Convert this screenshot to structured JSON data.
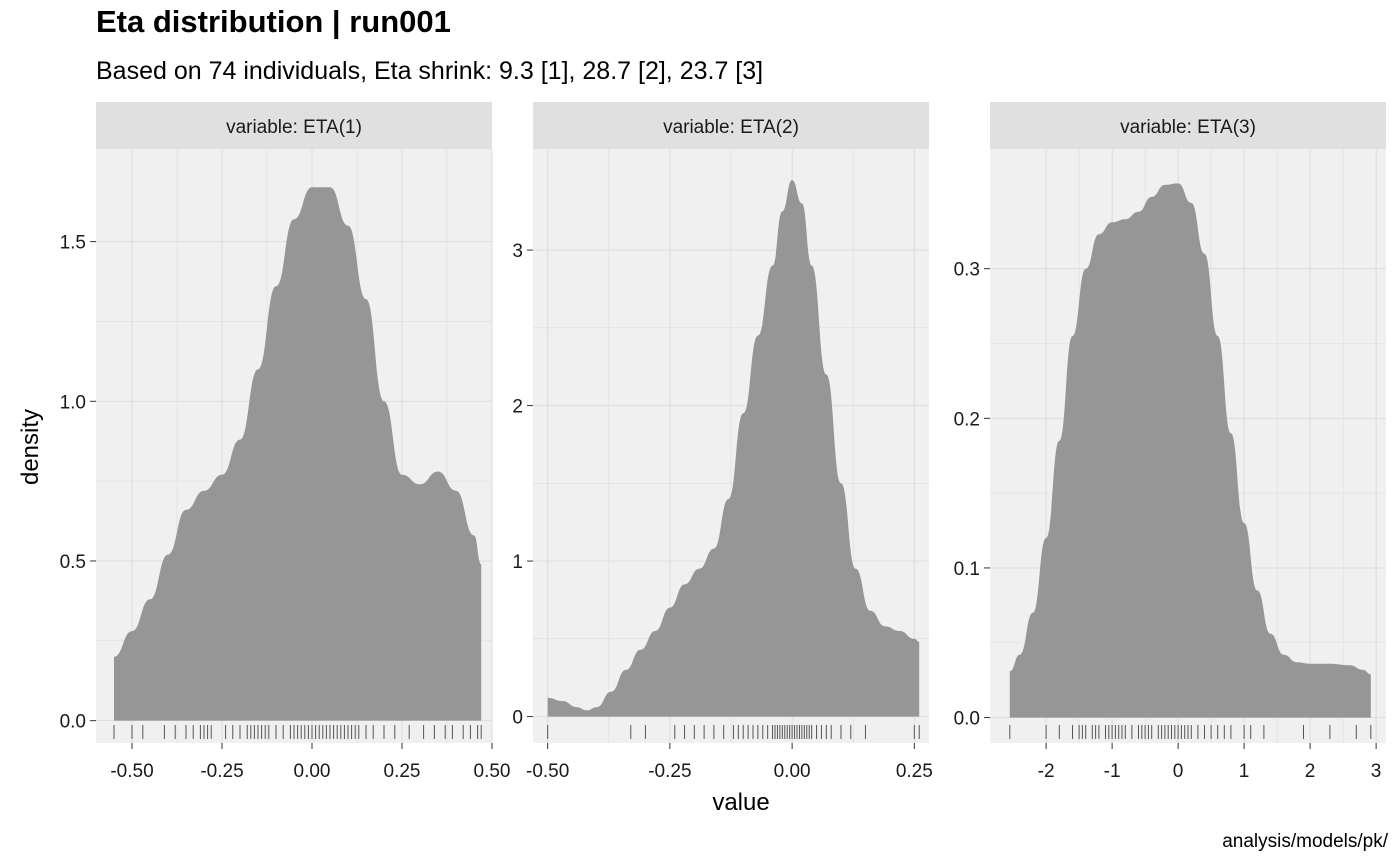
{
  "title": "Eta distribution | run001",
  "subtitle": "Based on 74 individuals, Eta shrink: 9.3 [1], 28.7 [2], 23.7 [3]",
  "caption": "analysis/models/pk/",
  "colors": {
    "panel_bg": "#f0f0f0",
    "strip_bg": "#e0e0e0",
    "grid": "#dcdcdc",
    "density_fill": "#969696",
    "rug": "#555555"
  },
  "chart_data": [
    {
      "type": "area",
      "strip_label": "variable: ETA(1)",
      "xlabel": "value",
      "ylabel": "density",
      "xlim": [
        -0.6,
        0.5
      ],
      "ylim": [
        -0.07,
        1.79
      ],
      "x_ticks": [
        -0.5,
        -0.25,
        0.0,
        0.25,
        0.5
      ],
      "x_tick_labels": [
        "-0.50",
        "-0.25",
        "0.00",
        "0.25",
        "0.50"
      ],
      "y_ticks": [
        0,
        0.5,
        1.0,
        1.5
      ],
      "y_tick_labels": [
        "0.0",
        "0.5",
        "1.0",
        "1.5"
      ],
      "density": {
        "x": [
          -0.55,
          -0.5,
          -0.45,
          -0.4,
          -0.35,
          -0.3,
          -0.25,
          -0.2,
          -0.15,
          -0.1,
          -0.05,
          0.0,
          0.05,
          0.1,
          0.15,
          0.2,
          0.25,
          0.3,
          0.35,
          0.4,
          0.45,
          0.47
        ],
        "y": [
          0.2,
          0.28,
          0.38,
          0.52,
          0.66,
          0.72,
          0.77,
          0.88,
          1.1,
          1.36,
          1.57,
          1.67,
          1.67,
          1.55,
          1.32,
          1.0,
          0.77,
          0.74,
          0.78,
          0.72,
          0.58,
          0.49
        ]
      },
      "rug": [
        -0.55,
        -0.5,
        -0.47,
        -0.41,
        -0.38,
        -0.35,
        -0.33,
        -0.31,
        -0.3,
        -0.29,
        -0.28,
        -0.24,
        -0.22,
        -0.2,
        -0.18,
        -0.17,
        -0.16,
        -0.15,
        -0.14,
        -0.13,
        -0.12,
        -0.1,
        -0.08,
        -0.06,
        -0.05,
        -0.04,
        -0.03,
        -0.02,
        -0.01,
        0.0,
        0.01,
        0.02,
        0.03,
        0.04,
        0.05,
        0.06,
        0.07,
        0.08,
        0.09,
        0.1,
        0.11,
        0.12,
        0.13,
        0.15,
        0.17,
        0.2,
        0.23,
        0.27,
        0.31,
        0.34,
        0.37,
        0.39,
        0.42,
        0.44,
        0.46,
        0.47
      ]
    },
    {
      "type": "area",
      "strip_label": "variable: ETA(2)",
      "xlabel": "value",
      "ylabel": "density",
      "xlim": [
        -0.53,
        0.28
      ],
      "ylim": [
        -0.17,
        3.65
      ],
      "x_ticks": [
        -0.5,
        -0.25,
        0.0,
        0.25
      ],
      "x_tick_labels": [
        "-0.50",
        "-0.25",
        "0.00",
        "0.25"
      ],
      "y_ticks": [
        0,
        1,
        2,
        3
      ],
      "y_tick_labels": [
        "0",
        "1",
        "2",
        "3"
      ],
      "density": {
        "x": [
          -0.5,
          -0.47,
          -0.44,
          -0.42,
          -0.4,
          -0.37,
          -0.34,
          -0.31,
          -0.28,
          -0.25,
          -0.22,
          -0.19,
          -0.16,
          -0.13,
          -0.1,
          -0.07,
          -0.04,
          -0.02,
          0.0,
          0.02,
          0.04,
          0.07,
          0.1,
          0.13,
          0.16,
          0.19,
          0.22,
          0.25,
          0.26
        ],
        "y": [
          0.12,
          0.1,
          0.06,
          0.04,
          0.06,
          0.16,
          0.3,
          0.43,
          0.55,
          0.7,
          0.85,
          0.95,
          1.08,
          1.4,
          1.95,
          2.45,
          2.9,
          3.25,
          3.45,
          3.3,
          2.9,
          2.2,
          1.5,
          0.95,
          0.68,
          0.58,
          0.55,
          0.5,
          0.48
        ]
      },
      "rug": [
        -0.5,
        -0.33,
        -0.3,
        -0.24,
        -0.22,
        -0.2,
        -0.18,
        -0.16,
        -0.14,
        -0.12,
        -0.11,
        -0.1,
        -0.09,
        -0.08,
        -0.07,
        -0.06,
        -0.05,
        -0.04,
        -0.035,
        -0.03,
        -0.025,
        -0.02,
        -0.015,
        -0.01,
        -0.005,
        0.0,
        0.005,
        0.01,
        0.015,
        0.02,
        0.025,
        0.03,
        0.035,
        0.04,
        0.05,
        0.06,
        0.07,
        0.08,
        0.1,
        0.12,
        0.15,
        0.25,
        0.26
      ]
    },
    {
      "type": "area",
      "strip_label": "variable: ETA(3)",
      "xlabel": "value",
      "ylabel": "density",
      "xlim": [
        -2.85,
        3.15
      ],
      "ylim": [
        -0.017,
        0.38
      ],
      "x_ticks": [
        -2,
        -1,
        0,
        1,
        2,
        3
      ],
      "x_tick_labels": [
        "-2",
        "-1",
        "0",
        "1",
        "2",
        "3"
      ],
      "y_ticks": [
        0,
        0.1,
        0.2,
        0.3
      ],
      "y_tick_labels": [
        "0.0",
        "0.1",
        "0.2",
        "0.3"
      ],
      "density": {
        "x": [
          -2.55,
          -2.4,
          -2.2,
          -2.0,
          -1.8,
          -1.6,
          -1.4,
          -1.2,
          -1.0,
          -0.8,
          -0.6,
          -0.4,
          -0.2,
          0.0,
          0.2,
          0.4,
          0.6,
          0.8,
          1.0,
          1.2,
          1.4,
          1.6,
          1.8,
          2.0,
          2.3,
          2.6,
          2.8,
          2.92
        ],
        "y": [
          0.031,
          0.042,
          0.07,
          0.12,
          0.185,
          0.255,
          0.3,
          0.323,
          0.331,
          0.333,
          0.338,
          0.348,
          0.356,
          0.357,
          0.344,
          0.31,
          0.255,
          0.19,
          0.13,
          0.085,
          0.056,
          0.042,
          0.037,
          0.036,
          0.036,
          0.035,
          0.032,
          0.029
        ]
      },
      "rug": [
        -2.55,
        -2.0,
        -1.8,
        -1.6,
        -1.5,
        -1.45,
        -1.4,
        -1.3,
        -1.25,
        -1.2,
        -1.1,
        -1.05,
        -1.0,
        -0.95,
        -0.9,
        -0.85,
        -0.8,
        -0.7,
        -0.6,
        -0.55,
        -0.5,
        -0.45,
        -0.4,
        -0.3,
        -0.25,
        -0.2,
        -0.15,
        -0.1,
        -0.05,
        0.0,
        0.05,
        0.1,
        0.15,
        0.2,
        0.3,
        0.4,
        0.5,
        0.6,
        0.7,
        0.8,
        1.0,
        1.1,
        1.3,
        1.9,
        2.3,
        2.7,
        2.92
      ]
    }
  ]
}
